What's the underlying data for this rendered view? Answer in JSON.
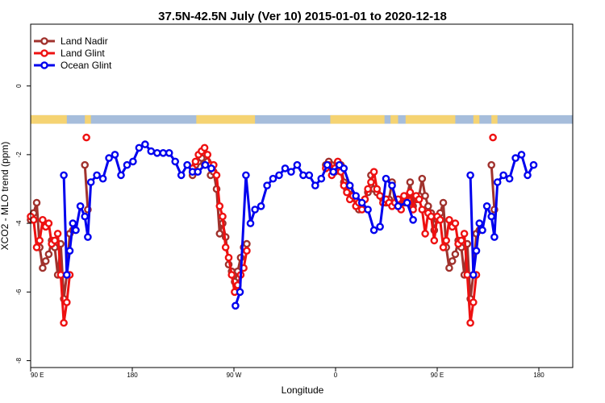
{
  "chart_data": {
    "type": "line",
    "title": "37.5N-42.5N July (Ver 10)   2015-01-01 to 2020-12-18",
    "xlabel": "Longitude",
    "ylabel": "XCO2 - MLO trend (ppm)",
    "xlim": [
      0,
      720
    ],
    "ylim": [
      -8.2,
      1.8
    ],
    "x_ticks": [
      {
        "value": 0,
        "label": "90 E"
      },
      {
        "value": 135,
        "label": "180"
      },
      {
        "value": 270,
        "label": "90 W"
      },
      {
        "value": 405,
        "label": "0"
      },
      {
        "value": 540,
        "label": "90 E"
      },
      {
        "value": 675,
        "label": "180"
      }
    ],
    "y_ticks": [
      {
        "value": 0,
        "label": "0"
      },
      {
        "value": -2,
        "label": "-2"
      },
      {
        "value": -4,
        "label": "-4"
      },
      {
        "value": -6,
        "label": "-6"
      },
      {
        "value": -8,
        "label": "-8"
      }
    ],
    "grid": false,
    "legend_position": "top-left",
    "land_ocean_band": {
      "y_top": -0.85,
      "y_bottom": -1.1,
      "ocean_color": "#a6bddb",
      "land_color": "#f5d372"
    },
    "series": [
      {
        "name": "Land Nadir",
        "color": "#a0322d",
        "points": [
          [
            0,
            -3.9
          ],
          [
            4,
            -3.7
          ],
          [
            8,
            -3.4
          ],
          [
            12,
            -4.7
          ],
          [
            16,
            -5.3
          ],
          [
            20,
            -5.1
          ],
          [
            24,
            -4.9
          ],
          [
            28,
            -4.5
          ],
          [
            32,
            -4.7
          ],
          [
            36,
            -5.5
          ],
          [
            40,
            -4.6
          ],
          [
            44,
            -6.2
          ],
          [
            48,
            -5.5
          ],
          [
            52,
            -4.3
          ],
          [
            56,
            -4.2
          ],
          [
            null,
            null
          ],
          [
            72,
            -2.3
          ],
          [
            76,
            -3.6
          ],
          [
            null,
            null
          ],
          [
            215,
            -2.6
          ],
          [
            219,
            -2.3
          ],
          [
            223,
            -2.2
          ],
          [
            227,
            -2.1
          ],
          [
            231,
            -2.3
          ],
          [
            235,
            -2.2
          ],
          [
            239,
            -2.6
          ],
          [
            243,
            -2.5
          ],
          [
            247,
            -3.0
          ],
          [
            251,
            -4.3
          ],
          [
            255,
            -4.0
          ],
          [
            259,
            -4.4
          ],
          [
            263,
            -5.2
          ],
          [
            267,
            -5.4
          ],
          [
            271,
            -5.7
          ],
          [
            275,
            -5.4
          ],
          [
            279,
            -5.0
          ],
          [
            283,
            -4.7
          ],
          [
            287,
            -4.6
          ],
          [
            null,
            null
          ],
          [
            392,
            -2.3
          ],
          [
            396,
            -2.2
          ],
          [
            400,
            -2.3
          ],
          [
            404,
            -2.5
          ],
          [
            408,
            -2.4
          ],
          [
            412,
            -2.3
          ],
          [
            416,
            -2.8
          ],
          [
            420,
            -3.0
          ],
          [
            424,
            -3.0
          ],
          [
            428,
            -3.2
          ],
          [
            432,
            -3.3
          ],
          [
            436,
            -3.6
          ],
          [
            440,
            -3.5
          ],
          [
            444,
            -3.3
          ],
          [
            448,
            -3.1
          ],
          [
            452,
            -2.6
          ],
          [
            456,
            -3.0
          ],
          [
            460,
            -3.1
          ],
          [
            464,
            -3.2
          ],
          [
            468,
            -3.3
          ],
          [
            472,
            -3.4
          ],
          [
            476,
            -3.3
          ],
          [
            480,
            -2.8
          ],
          [
            484,
            -3.4
          ],
          [
            488,
            -3.5
          ],
          [
            492,
            -3.3
          ],
          [
            496,
            -3.4
          ],
          [
            500,
            -3.2
          ],
          [
            504,
            -2.8
          ],
          [
            508,
            -3.5
          ],
          [
            512,
            -3.3
          ],
          [
            516,
            -3.2
          ],
          [
            520,
            -2.7
          ],
          [
            524,
            -3.2
          ],
          [
            528,
            -3.5
          ],
          [
            532,
            -3.7
          ],
          [
            536,
            -4.2
          ],
          [
            540,
            -3.9
          ],
          [
            544,
            -3.7
          ],
          [
            548,
            -3.4
          ],
          [
            552,
            -4.7
          ],
          [
            556,
            -5.3
          ],
          [
            560,
            -5.1
          ],
          [
            564,
            -4.9
          ],
          [
            568,
            -4.5
          ],
          [
            572,
            -4.7
          ],
          [
            576,
            -5.5
          ],
          [
            580,
            -4.6
          ],
          [
            584,
            -6.2
          ],
          [
            588,
            -5.5
          ],
          [
            592,
            -4.3
          ],
          [
            596,
            -4.2
          ],
          [
            null,
            null
          ],
          [
            612,
            -2.3
          ],
          [
            616,
            -3.6
          ]
        ]
      },
      {
        "name": "Land Glint",
        "color": "#ee1111",
        "points": [
          [
            0,
            -3.8
          ],
          [
            4,
            -3.9
          ],
          [
            8,
            -4.7
          ],
          [
            12,
            -4.5
          ],
          [
            16,
            -3.9
          ],
          [
            20,
            -4.1
          ],
          [
            24,
            -4.0
          ],
          [
            28,
            -4.6
          ],
          [
            32,
            -4.5
          ],
          [
            36,
            -4.3
          ],
          [
            40,
            -5.5
          ],
          [
            44,
            -6.9
          ],
          [
            48,
            -6.3
          ],
          [
            52,
            -5.5
          ],
          [
            null,
            null
          ],
          [
            74,
            -1.5
          ],
          [
            null,
            null
          ],
          [
            215,
            -2.4
          ],
          [
            219,
            -2.2
          ],
          [
            223,
            -2.0
          ],
          [
            227,
            -1.9
          ],
          [
            231,
            -1.8
          ],
          [
            235,
            -2.0
          ],
          [
            239,
            -2.3
          ],
          [
            243,
            -2.3
          ],
          [
            247,
            -2.6
          ],
          [
            251,
            -3.5
          ],
          [
            255,
            -3.8
          ],
          [
            259,
            -4.7
          ],
          [
            263,
            -5.0
          ],
          [
            267,
            -5.5
          ],
          [
            271,
            -6.0
          ],
          [
            275,
            -5.8
          ],
          [
            279,
            -5.5
          ],
          [
            283,
            -5.3
          ],
          [
            287,
            -4.8
          ],
          [
            null,
            null
          ],
          [
            392,
            -2.4
          ],
          [
            396,
            -2.3
          ],
          [
            400,
            -2.6
          ],
          [
            404,
            -2.4
          ],
          [
            408,
            -2.2
          ],
          [
            412,
            -2.5
          ],
          [
            416,
            -2.9
          ],
          [
            420,
            -3.1
          ],
          [
            424,
            -3.3
          ],
          [
            428,
            -3.2
          ],
          [
            432,
            -3.5
          ],
          [
            436,
            -3.4
          ],
          [
            440,
            -3.6
          ],
          [
            444,
            -3.3
          ],
          [
            448,
            -3.0
          ],
          [
            452,
            -2.8
          ],
          [
            456,
            -2.5
          ],
          [
            460,
            -3.0
          ],
          [
            464,
            -3.2
          ],
          [
            468,
            -3.4
          ],
          [
            472,
            -3.3
          ],
          [
            476,
            -3.4
          ],
          [
            480,
            -3.5
          ],
          [
            484,
            -3.4
          ],
          [
            488,
            -3.3
          ],
          [
            492,
            -3.6
          ],
          [
            496,
            -3.2
          ],
          [
            500,
            -3.4
          ],
          [
            504,
            -3.1
          ],
          [
            508,
            -3.6
          ],
          [
            512,
            -3.2
          ],
          [
            516,
            -3.3
          ],
          [
            520,
            -3.6
          ],
          [
            524,
            -4.3
          ],
          [
            528,
            -3.7
          ],
          [
            532,
            -3.8
          ],
          [
            536,
            -4.5
          ],
          [
            540,
            -3.8
          ],
          [
            544,
            -3.9
          ],
          [
            548,
            -4.7
          ],
          [
            552,
            -4.5
          ],
          [
            556,
            -3.9
          ],
          [
            560,
            -4.1
          ],
          [
            564,
            -4.0
          ],
          [
            568,
            -4.6
          ],
          [
            572,
            -4.5
          ],
          [
            576,
            -4.3
          ],
          [
            580,
            -5.5
          ],
          [
            584,
            -6.9
          ],
          [
            588,
            -6.3
          ],
          [
            592,
            -5.5
          ],
          [
            null,
            null
          ],
          [
            614,
            -1.5
          ]
        ]
      },
      {
        "name": "Ocean Glint",
        "color": "#0000ee",
        "points": [
          [
            44,
            -2.6
          ],
          [
            48,
            -5.5
          ],
          [
            52,
            -4.8
          ],
          [
            56,
            -4.0
          ],
          [
            60,
            -4.2
          ],
          [
            66,
            -3.5
          ],
          [
            72,
            -3.8
          ],
          [
            76,
            -4.4
          ],
          [
            80,
            -2.8
          ],
          [
            88,
            -2.6
          ],
          [
            96,
            -2.7
          ],
          [
            104,
            -2.1
          ],
          [
            112,
            -2.0
          ],
          [
            120,
            -2.6
          ],
          [
            128,
            -2.3
          ],
          [
            136,
            -2.2
          ],
          [
            144,
            -1.8
          ],
          [
            152,
            -1.7
          ],
          [
            160,
            -1.9
          ],
          [
            168,
            -1.95
          ],
          [
            176,
            -1.95
          ],
          [
            184,
            -1.95
          ],
          [
            192,
            -2.2
          ],
          [
            200,
            -2.6
          ],
          [
            208,
            -2.3
          ],
          [
            215,
            -2.5
          ],
          [
            222,
            -2.5
          ],
          [
            232,
            -2.3
          ],
          [
            240,
            -2.4
          ],
          [
            null,
            null
          ],
          [
            272,
            -6.4
          ],
          [
            278,
            -6.0
          ],
          [
            286,
            -2.6
          ],
          [
            292,
            -4.0
          ],
          [
            298,
            -3.6
          ],
          [
            306,
            -3.5
          ],
          [
            314,
            -2.9
          ],
          [
            322,
            -2.7
          ],
          [
            330,
            -2.6
          ],
          [
            338,
            -2.4
          ],
          [
            346,
            -2.5
          ],
          [
            354,
            -2.3
          ],
          [
            362,
            -2.6
          ],
          [
            370,
            -2.6
          ],
          [
            378,
            -2.9
          ],
          [
            386,
            -2.7
          ],
          [
            394,
            -2.3
          ],
          [
            402,
            -2.5
          ],
          [
            410,
            -2.3
          ],
          [
            416,
            -2.4
          ],
          [
            424,
            -2.9
          ],
          [
            432,
            -3.2
          ],
          [
            440,
            -3.4
          ],
          [
            448,
            -3.6
          ],
          [
            456,
            -4.2
          ],
          [
            464,
            -4.1
          ],
          [
            472,
            -2.7
          ],
          [
            480,
            -2.9
          ],
          [
            488,
            -3.5
          ],
          [
            500,
            -3.4
          ],
          [
            508,
            -3.9
          ],
          [
            null,
            null
          ],
          [
            584,
            -2.6
          ],
          [
            588,
            -5.5
          ],
          [
            592,
            -4.8
          ],
          [
            596,
            -4.0
          ],
          [
            600,
            -4.2
          ],
          [
            606,
            -3.5
          ],
          [
            612,
            -3.8
          ],
          [
            616,
            -4.4
          ],
          [
            620,
            -2.8
          ],
          [
            628,
            -2.6
          ],
          [
            636,
            -2.7
          ],
          [
            644,
            -2.1
          ],
          [
            652,
            -2.0
          ],
          [
            660,
            -2.6
          ],
          [
            668,
            -2.3
          ]
        ]
      }
    ]
  }
}
